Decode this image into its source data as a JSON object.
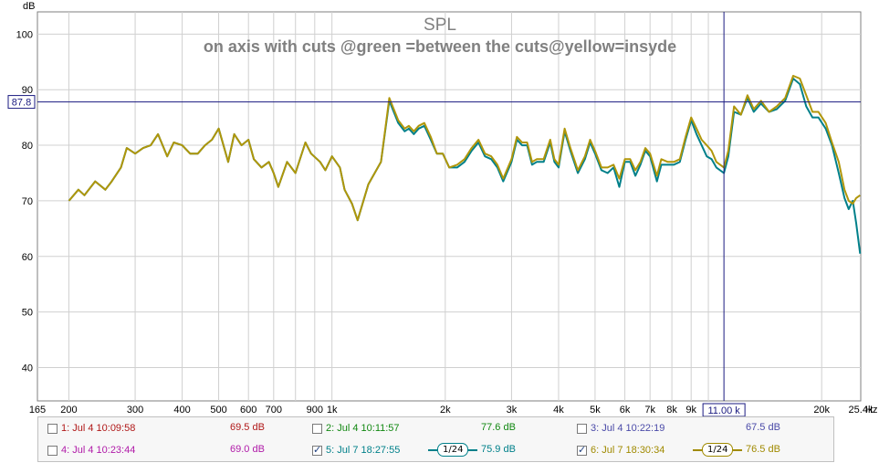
{
  "chart_data": {
    "type": "line",
    "title": "SPL",
    "subtitle": "on axis with cuts @green =between the cuts@yellow=insyde",
    "ylabel": "dB",
    "xlabel": "Hz",
    "xscale": "log",
    "xlim": [
      165,
      25400
    ],
    "ylim": [
      34,
      104
    ],
    "yticks": [
      40,
      50,
      60,
      70,
      80,
      90,
      100
    ],
    "xticks": [
      {
        "value": 165,
        "label": "165"
      },
      {
        "value": 200,
        "label": "200"
      },
      {
        "value": 300,
        "label": "300"
      },
      {
        "value": 400,
        "label": "400"
      },
      {
        "value": 500,
        "label": "500"
      },
      {
        "value": 600,
        "label": "600"
      },
      {
        "value": 700,
        "label": "700"
      },
      {
        "value": 900,
        "label": "900"
      },
      {
        "value": 1000,
        "label": "1k"
      },
      {
        "value": 2000,
        "label": "2k"
      },
      {
        "value": 3000,
        "label": "3k"
      },
      {
        "value": 4000,
        "label": "4k"
      },
      {
        "value": 5000,
        "label": "5k"
      },
      {
        "value": 6000,
        "label": "6k"
      },
      {
        "value": 7000,
        "label": "7k"
      },
      {
        "value": 8000,
        "label": "8k"
      },
      {
        "value": 9000,
        "label": "9k"
      },
      {
        "value": 20000,
        "label": "20k"
      },
      {
        "value": 25400,
        "label": "25.4k"
      }
    ],
    "grid": true,
    "cursor": {
      "x": 11000,
      "x_label": "11.00 k",
      "y": 87.8,
      "y_label": "87.8"
    },
    "series": [
      {
        "name": "5: Jul 7 18:27:55",
        "color": "#00808a",
        "points": [
          [
            200,
            70
          ],
          [
            212,
            72
          ],
          [
            220,
            71
          ],
          [
            235,
            73.5
          ],
          [
            250,
            72
          ],
          [
            260,
            73.5
          ],
          [
            275,
            76
          ],
          [
            285,
            79.5
          ],
          [
            300,
            78.5
          ],
          [
            315,
            79.5
          ],
          [
            330,
            80
          ],
          [
            345,
            82
          ],
          [
            365,
            78
          ],
          [
            380,
            80.5
          ],
          [
            400,
            80
          ],
          [
            420,
            78.5
          ],
          [
            440,
            78.5
          ],
          [
            460,
            80
          ],
          [
            480,
            81
          ],
          [
            500,
            83
          ],
          [
            530,
            77
          ],
          [
            550,
            82
          ],
          [
            575,
            80
          ],
          [
            600,
            81
          ],
          [
            620,
            77.5
          ],
          [
            650,
            76
          ],
          [
            680,
            77
          ],
          [
            700,
            75
          ],
          [
            720,
            72.5
          ],
          [
            760,
            77
          ],
          [
            800,
            75
          ],
          [
            850,
            80.5
          ],
          [
            880,
            78.5
          ],
          [
            930,
            77
          ],
          [
            960,
            75.5
          ],
          [
            1000,
            78
          ],
          [
            1050,
            76
          ],
          [
            1080,
            72
          ],
          [
            1130,
            69.5
          ],
          [
            1170,
            66.5
          ],
          [
            1250,
            73
          ],
          [
            1350,
            77
          ],
          [
            1420,
            88
          ],
          [
            1500,
            84
          ],
          [
            1560,
            82.5
          ],
          [
            1600,
            83
          ],
          [
            1650,
            82
          ],
          [
            1700,
            83
          ],
          [
            1760,
            83.5
          ],
          [
            1830,
            81
          ],
          [
            1900,
            78.5
          ],
          [
            1970,
            78.5
          ],
          [
            2050,
            76
          ],
          [
            2150,
            76
          ],
          [
            2250,
            77
          ],
          [
            2350,
            79
          ],
          [
            2450,
            80.5
          ],
          [
            2550,
            78
          ],
          [
            2650,
            77.5
          ],
          [
            2750,
            76
          ],
          [
            2850,
            73.5
          ],
          [
            3000,
            77
          ],
          [
            3100,
            81
          ],
          [
            3200,
            80
          ],
          [
            3300,
            80
          ],
          [
            3400,
            76.5
          ],
          [
            3500,
            77
          ],
          [
            3650,
            77
          ],
          [
            3800,
            80.5
          ],
          [
            3900,
            77
          ],
          [
            4000,
            76
          ],
          [
            4150,
            82.5
          ],
          [
            4300,
            79
          ],
          [
            4500,
            75
          ],
          [
            4700,
            77.5
          ],
          [
            4850,
            80.5
          ],
          [
            5000,
            78.5
          ],
          [
            5200,
            75.5
          ],
          [
            5400,
            75
          ],
          [
            5600,
            76
          ],
          [
            5800,
            72.5
          ],
          [
            6000,
            77
          ],
          [
            6200,
            77
          ],
          [
            6400,
            74.5
          ],
          [
            6600,
            76.5
          ],
          [
            6800,
            79
          ],
          [
            7000,
            78
          ],
          [
            7300,
            73.5
          ],
          [
            7500,
            76.5
          ],
          [
            7800,
            76.5
          ],
          [
            8100,
            76.5
          ],
          [
            8400,
            77
          ],
          [
            8700,
            81
          ],
          [
            9000,
            84.5
          ],
          [
            9300,
            82
          ],
          [
            9600,
            80
          ],
          [
            9900,
            78
          ],
          [
            10200,
            77.5
          ],
          [
            10500,
            76
          ],
          [
            11000,
            75
          ],
          [
            11300,
            78
          ],
          [
            11700,
            86
          ],
          [
            12200,
            85.5
          ],
          [
            12700,
            88.5
          ],
          [
            13200,
            86
          ],
          [
            13800,
            87.5
          ],
          [
            14500,
            86
          ],
          [
            15200,
            86.5
          ],
          [
            16000,
            88
          ],
          [
            16800,
            92
          ],
          [
            17500,
            91
          ],
          [
            18200,
            87
          ],
          [
            18900,
            85
          ],
          [
            19600,
            85
          ],
          [
            20500,
            83
          ],
          [
            21300,
            80
          ],
          [
            22200,
            75
          ],
          [
            23000,
            70.5
          ],
          [
            23600,
            68.5
          ],
          [
            24200,
            70
          ],
          [
            24700,
            66
          ],
          [
            25300,
            60.5
          ]
        ]
      },
      {
        "name": "6: Jul 7 18:30:34",
        "color": "#b0960a",
        "points": [
          [
            200,
            70
          ],
          [
            212,
            72
          ],
          [
            220,
            71
          ],
          [
            235,
            73.5
          ],
          [
            250,
            72
          ],
          [
            260,
            73.5
          ],
          [
            275,
            76
          ],
          [
            285,
            79.5
          ],
          [
            300,
            78.5
          ],
          [
            315,
            79.5
          ],
          [
            330,
            80
          ],
          [
            345,
            82
          ],
          [
            365,
            78
          ],
          [
            380,
            80.5
          ],
          [
            400,
            80
          ],
          [
            420,
            78.5
          ],
          [
            440,
            78.5
          ],
          [
            460,
            80
          ],
          [
            480,
            81
          ],
          [
            500,
            83
          ],
          [
            530,
            77
          ],
          [
            550,
            82
          ],
          [
            575,
            80
          ],
          [
            600,
            81
          ],
          [
            620,
            77.5
          ],
          [
            650,
            76
          ],
          [
            680,
            77
          ],
          [
            700,
            75
          ],
          [
            720,
            72.5
          ],
          [
            760,
            77
          ],
          [
            800,
            75
          ],
          [
            850,
            80.5
          ],
          [
            880,
            78.5
          ],
          [
            930,
            77
          ],
          [
            960,
            75.5
          ],
          [
            1000,
            78
          ],
          [
            1050,
            76
          ],
          [
            1080,
            72
          ],
          [
            1130,
            69.5
          ],
          [
            1170,
            66.5
          ],
          [
            1250,
            73
          ],
          [
            1350,
            77
          ],
          [
            1420,
            88.5
          ],
          [
            1500,
            84.5
          ],
          [
            1560,
            83
          ],
          [
            1600,
            83.5
          ],
          [
            1650,
            82.5
          ],
          [
            1700,
            83.5
          ],
          [
            1760,
            84
          ],
          [
            1830,
            81.5
          ],
          [
            1900,
            78.5
          ],
          [
            1970,
            78.5
          ],
          [
            2050,
            76
          ],
          [
            2150,
            76.5
          ],
          [
            2250,
            77.5
          ],
          [
            2350,
            79.5
          ],
          [
            2450,
            81
          ],
          [
            2550,
            78.5
          ],
          [
            2650,
            78
          ],
          [
            2750,
            76.5
          ],
          [
            2850,
            74
          ],
          [
            3000,
            77.5
          ],
          [
            3100,
            81.5
          ],
          [
            3200,
            80.5
          ],
          [
            3300,
            80.5
          ],
          [
            3400,
            77
          ],
          [
            3500,
            77.5
          ],
          [
            3650,
            77.5
          ],
          [
            3800,
            81
          ],
          [
            3900,
            77.5
          ],
          [
            4000,
            76.5
          ],
          [
            4150,
            83
          ],
          [
            4300,
            79.5
          ],
          [
            4500,
            75.5
          ],
          [
            4700,
            78
          ],
          [
            4850,
            81
          ],
          [
            5000,
            79
          ],
          [
            5200,
            76
          ],
          [
            5400,
            76
          ],
          [
            5600,
            76.5
          ],
          [
            5800,
            74
          ],
          [
            6000,
            77.5
          ],
          [
            6200,
            77.5
          ],
          [
            6400,
            75.5
          ],
          [
            6600,
            77
          ],
          [
            6800,
            79.5
          ],
          [
            7000,
            78.5
          ],
          [
            7300,
            74.5
          ],
          [
            7500,
            77.5
          ],
          [
            7800,
            77
          ],
          [
            8100,
            77
          ],
          [
            8400,
            77.5
          ],
          [
            8700,
            81.5
          ],
          [
            9000,
            85
          ],
          [
            9300,
            83
          ],
          [
            9600,
            81
          ],
          [
            9900,
            80
          ],
          [
            10200,
            79
          ],
          [
            10500,
            77
          ],
          [
            11000,
            76
          ],
          [
            11300,
            79
          ],
          [
            11700,
            87
          ],
          [
            12200,
            85.5
          ],
          [
            12700,
            89
          ],
          [
            13200,
            86.5
          ],
          [
            13800,
            88
          ],
          [
            14500,
            86
          ],
          [
            15200,
            87
          ],
          [
            16000,
            88.5
          ],
          [
            16800,
            92.5
          ],
          [
            17500,
            92
          ],
          [
            18200,
            89
          ],
          [
            18900,
            86
          ],
          [
            19600,
            86
          ],
          [
            20500,
            84
          ],
          [
            21300,
            80.5
          ],
          [
            22200,
            77
          ],
          [
            23000,
            72
          ],
          [
            23600,
            70
          ],
          [
            24200,
            69.5
          ],
          [
            24700,
            70.5
          ],
          [
            25300,
            71
          ]
        ]
      }
    ]
  },
  "legend": {
    "entries": [
      {
        "label": "1: Jul 4 10:09:58",
        "value": "69.5 dB",
        "checked": false,
        "color": "#b01818"
      },
      {
        "label": "2: Jul 4 10:11:57",
        "value": "77.6 dB",
        "checked": false,
        "color": "#118811"
      },
      {
        "label": "3: Jul 4 10:22:19",
        "value": "67.5 dB",
        "checked": false,
        "color": "#4a4aa8"
      },
      {
        "label": "4: Jul 4 10:23:44",
        "value": "69.0 dB",
        "checked": false,
        "color": "#b01aa8"
      },
      {
        "label": "5: Jul 7 18:27:55",
        "value": "75.9 dB",
        "checked": true,
        "color": "#00808a",
        "smoothing": "1/24"
      },
      {
        "label": "6: Jul 7 18:30:34",
        "value": "76.5 dB",
        "checked": true,
        "color": "#a08a00",
        "smoothing": "1/24"
      }
    ]
  }
}
